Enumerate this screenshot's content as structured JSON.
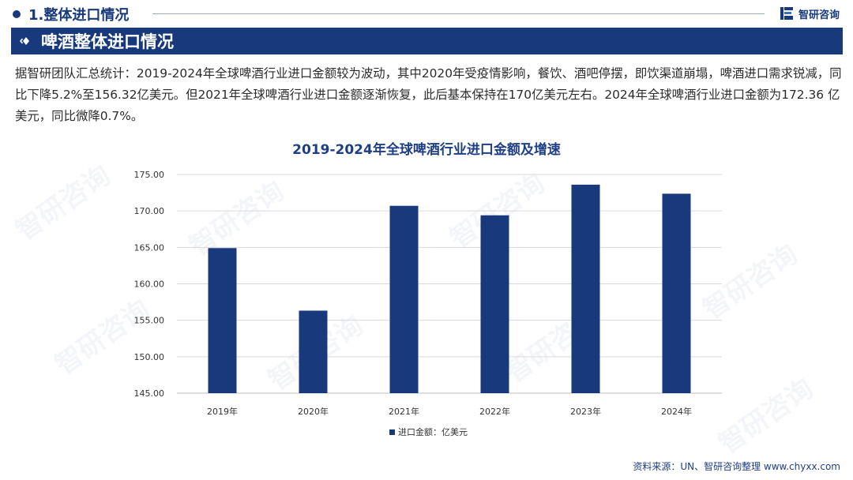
{
  "header": {
    "section_number_title": "1.整体进口情况",
    "brand": "智研咨询"
  },
  "banner": {
    "title": "啤酒整体进口情况"
  },
  "description": "据智研团队汇总统计：2019-2024年全球啤酒行业进口金额较为波动，其中2020年受疫情影响，餐饮、酒吧停摆，即饮渠道崩塌，啤酒进口需求锐减，同比下降5.2%至156.32亿美元。但2021年全球啤酒行业进口金额逐渐恢复，此后基本保持在170亿美元左右。2024年全球啤酒行业进口金额为172.36 亿美元，同比微降0.7%。",
  "watermark_text": "智研咨询",
  "chart_data": {
    "type": "bar",
    "title": "2019-2024年全球啤酒行业进口金额及增速",
    "categories": [
      "2019年",
      "2020年",
      "2021年",
      "2022年",
      "2023年",
      "2024年"
    ],
    "series": [
      {
        "name": "进口金额：亿美元",
        "values": [
          164.9,
          156.32,
          170.7,
          169.4,
          173.6,
          172.36
        ]
      }
    ],
    "ylim": [
      145,
      175
    ],
    "yticks": [
      "145.00",
      "150.00",
      "155.00",
      "160.00",
      "165.00",
      "170.00",
      "175.00"
    ],
    "grid": true,
    "legend_position": "bottom",
    "bar_color": "#183a7c"
  },
  "source": "资料来源：UN、智研咨询整理  www.chyxx.com",
  "colors": {
    "brand": "#183a7c",
    "grid": "#d9d9d9"
  }
}
